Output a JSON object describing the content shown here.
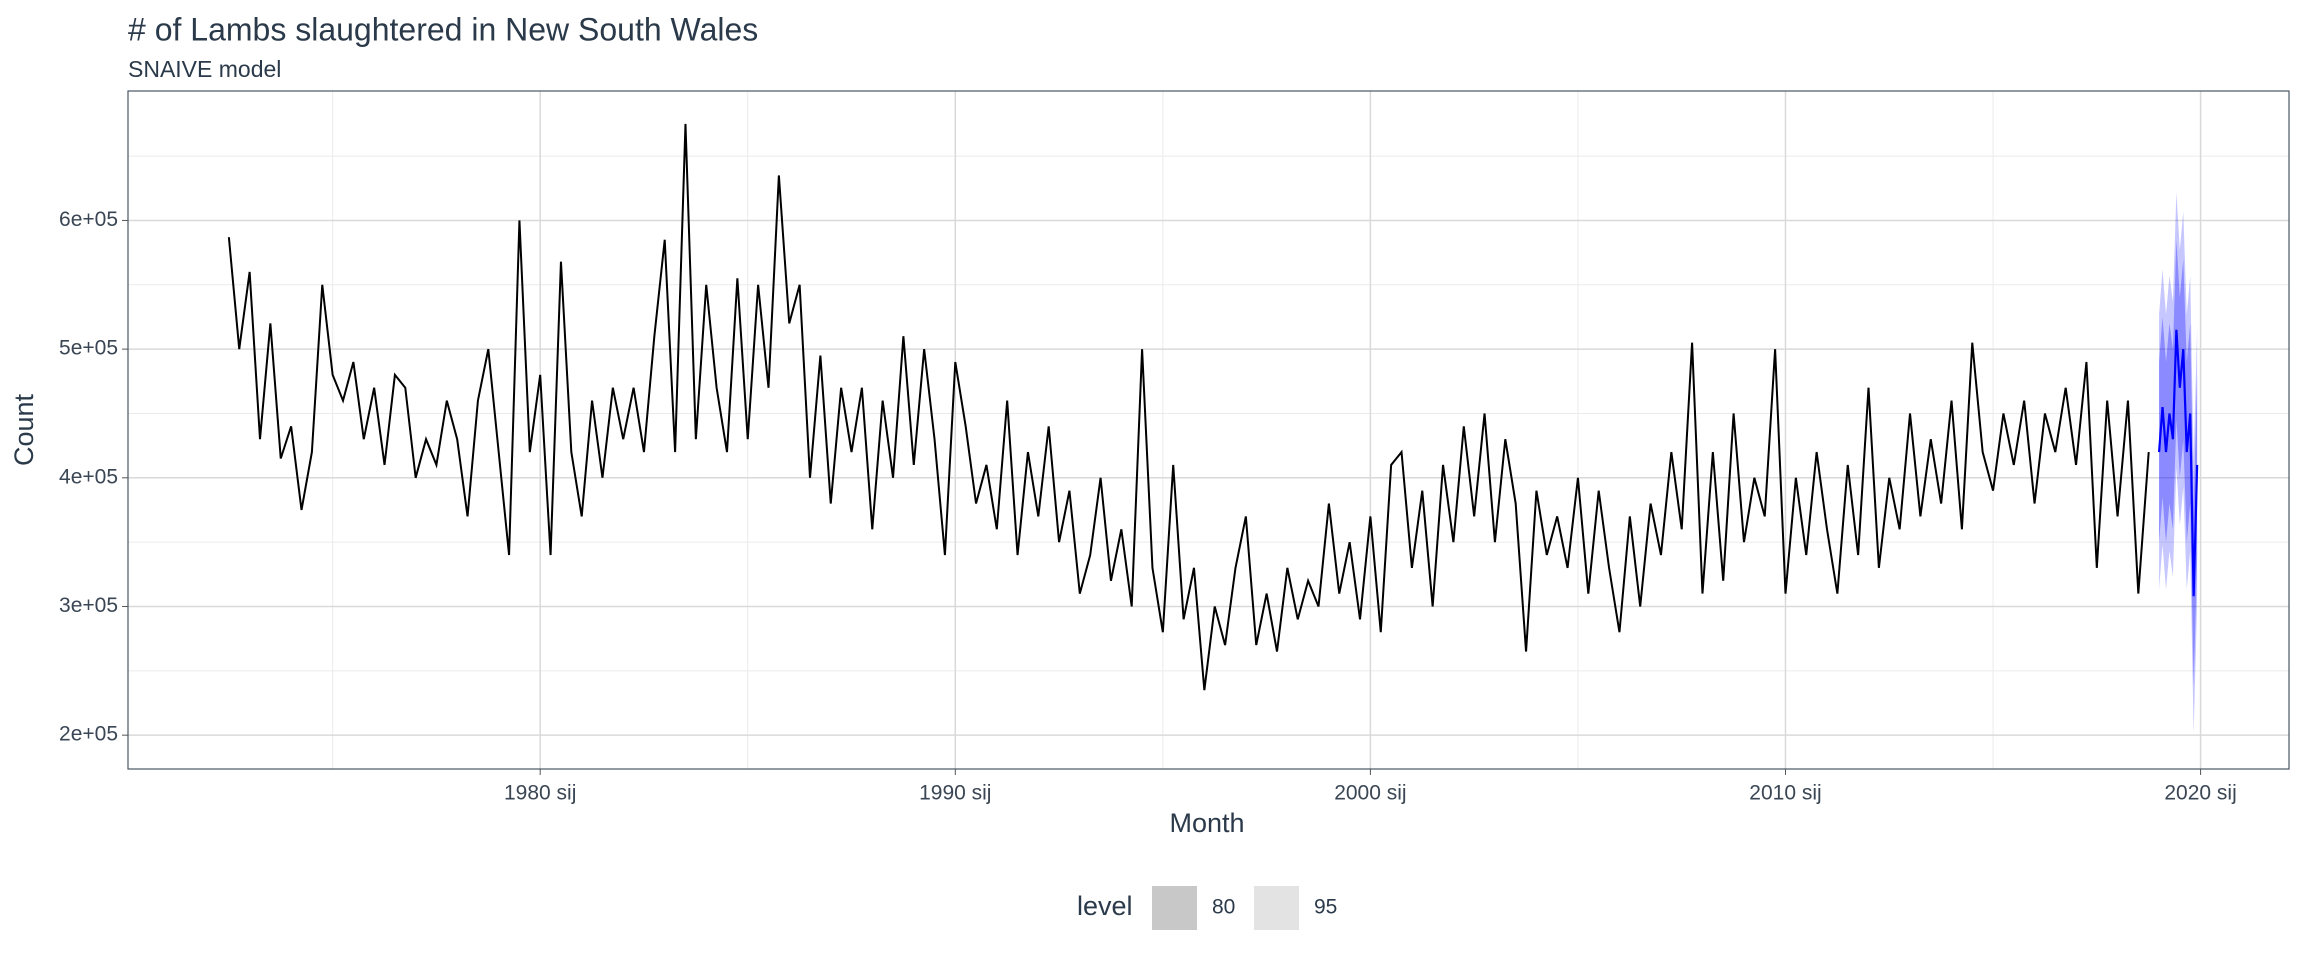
{
  "chart_data": {
    "type": "line",
    "title": "# of Lambs slaughtered in New South Wales",
    "subtitle": "SNAIVE model",
    "x_label": "Month",
    "y_label": "Count",
    "xlim": [
      1970.07,
      2022.13
    ],
    "ylim": [
      173700,
      700600
    ],
    "xticks": [
      {
        "value": 1980,
        "label": "1980 sij"
      },
      {
        "value": 1990,
        "label": "1990 sij"
      },
      {
        "value": 2000,
        "label": "2000 sij"
      },
      {
        "value": 2010,
        "label": "2010 sij"
      },
      {
        "value": 2020,
        "label": "2020 sij"
      }
    ],
    "yticks": [
      {
        "value": 200000,
        "label": "2e+05"
      },
      {
        "value": 300000,
        "label": "3e+05"
      },
      {
        "value": 400000,
        "label": "4e+05"
      },
      {
        "value": 500000,
        "label": "5e+05"
      },
      {
        "value": 600000,
        "label": "6e+05"
      }
    ],
    "grid": true,
    "series": [
      {
        "color": "#000000",
        "x": [
          1972.5,
          1972.75,
          1973,
          1973.25,
          1973.5,
          1973.75,
          1974,
          1974.25,
          1974.5,
          1974.75,
          1975,
          1975.25,
          1975.5,
          1975.75,
          1976,
          1976.25,
          1976.5,
          1976.75,
          1977,
          1977.25,
          1977.5,
          1977.75,
          1978,
          1978.25,
          1978.5,
          1978.75,
          1979,
          1979.25,
          1979.5,
          1979.75,
          1980,
          1980.25,
          1980.5,
          1980.75,
          1981,
          1981.25,
          1981.5,
          1981.75,
          1982,
          1982.25,
          1982.5,
          1982.75,
          1983,
          1983.25,
          1983.5,
          1983.75,
          1984,
          1984.25,
          1984.5,
          1984.75,
          1985,
          1985.25,
          1985.5,
          1985.75,
          1986,
          1986.25,
          1986.5,
          1986.75,
          1987,
          1987.25,
          1987.5,
          1987.75,
          1988,
          1988.25,
          1988.5,
          1988.75,
          1989,
          1989.25,
          1989.5,
          1989.75,
          1990,
          1990.25,
          1990.5,
          1990.75,
          1991,
          1991.25,
          1991.5,
          1991.75,
          1992,
          1992.25,
          1992.5,
          1992.75,
          1993,
          1993.25,
          1993.5,
          1993.75,
          1994,
          1994.25,
          1994.5,
          1994.75,
          1995,
          1995.25,
          1995.5,
          1995.75,
          1996,
          1996.25,
          1996.5,
          1996.75,
          1997,
          1997.25,
          1997.5,
          1997.75,
          1998,
          1998.25,
          1998.5,
          1998.75,
          1999,
          1999.25,
          1999.5,
          1999.75,
          2000,
          2000.25,
          2000.5,
          2000.75,
          2001,
          2001.25,
          2001.5,
          2001.75,
          2002,
          2002.25,
          2002.5,
          2002.75,
          2003,
          2003.25,
          2003.5,
          2003.75,
          2004,
          2004.25,
          2004.5,
          2004.75,
          2005,
          2005.25,
          2005.5,
          2005.75,
          2006,
          2006.25,
          2006.5,
          2006.75,
          2007,
          2007.25,
          2007.5,
          2007.75,
          2008,
          2008.25,
          2008.5,
          2008.75,
          2009,
          2009.25,
          2009.5,
          2009.75,
          2010,
          2010.25,
          2010.5,
          2010.75,
          2011,
          2011.25,
          2011.5,
          2011.75,
          2012,
          2012.25,
          2012.5,
          2012.75,
          2013,
          2013.25,
          2013.5,
          2013.75,
          2014,
          2014.25,
          2014.5,
          2014.75,
          2015,
          2015.25,
          2015.5,
          2015.75,
          2016,
          2016.25,
          2016.5,
          2016.75,
          2017,
          2017.25,
          2017.5,
          2017.75,
          2018,
          2018.25,
          2018.5,
          2018.75
        ],
        "values": [
          587000,
          500000,
          560000,
          430000,
          520000,
          415000,
          440000,
          375000,
          420000,
          550000,
          480000,
          460000,
          490000,
          430000,
          470000,
          410000,
          480000,
          470000,
          400000,
          430000,
          410000,
          460000,
          430000,
          370000,
          460000,
          500000,
          420000,
          340000,
          600000,
          420000,
          480000,
          340000,
          568000,
          420000,
          370000,
          460000,
          400000,
          470000,
          430000,
          470000,
          420000,
          510000,
          585000,
          420000,
          675000,
          430000,
          550000,
          470000,
          420000,
          555000,
          430000,
          550000,
          470000,
          635000,
          520000,
          550000,
          400000,
          495000,
          380000,
          470000,
          420000,
          470000,
          360000,
          460000,
          400000,
          510000,
          410000,
          500000,
          430000,
          340000,
          490000,
          440000,
          380000,
          410000,
          360000,
          460000,
          340000,
          420000,
          370000,
          440000,
          350000,
          390000,
          310000,
          340000,
          400000,
          320000,
          360000,
          300000,
          500000,
          330000,
          280000,
          410000,
          290000,
          330000,
          235000,
          300000,
          270000,
          330000,
          370000,
          270000,
          310000,
          265000,
          330000,
          290000,
          320000,
          300000,
          380000,
          310000,
          350000,
          290000,
          370000,
          280000,
          410000,
          420000,
          330000,
          390000,
          300000,
          410000,
          350000,
          440000,
          370000,
          450000,
          350000,
          430000,
          380000,
          265000,
          390000,
          340000,
          370000,
          330000,
          400000,
          310000,
          390000,
          330000,
          280000,
          370000,
          300000,
          380000,
          340000,
          420000,
          360000,
          505000,
          310000,
          420000,
          320000,
          450000,
          350000,
          400000,
          370000,
          500000,
          310000,
          400000,
          340000,
          420000,
          360000,
          310000,
          410000,
          340000,
          470000,
          330000,
          400000,
          360000,
          450000,
          370000,
          430000,
          380000,
          460000,
          360000,
          505000,
          420000,
          390000,
          450000,
          410000,
          460000,
          380000,
          450000,
          420000,
          470000,
          410000,
          490000,
          330000,
          460000,
          370000,
          460000,
          310000,
          420000
        ]
      }
    ],
    "forecast": {
      "color": "#0000ff",
      "x": [
        2019,
        2019.083,
        2019.167,
        2019.25,
        2019.333,
        2019.417,
        2019.5,
        2019.583,
        2019.667,
        2019.75,
        2019.833,
        2019.917
      ],
      "values": [
        420000,
        455000,
        420000,
        450000,
        430000,
        515000,
        470000,
        500000,
        420000,
        450000,
        308000,
        410000
      ],
      "lo80": [
        350000,
        385000,
        350000,
        380000,
        360000,
        445000,
        400000,
        430000,
        350000,
        380000,
        238000,
        340000
      ],
      "hi80": [
        490000,
        525000,
        490000,
        520000,
        500000,
        585000,
        540000,
        570000,
        490000,
        520000,
        378000,
        480000
      ],
      "lo95": [
        313000,
        348000,
        313000,
        343000,
        323000,
        408000,
        363000,
        393000,
        313000,
        343000,
        201000,
        303000
      ],
      "hi95": [
        527000,
        562000,
        527000,
        557000,
        537000,
        622000,
        577000,
        607000,
        527000,
        557000,
        415000,
        517000
      ]
    },
    "legend_title": "level",
    "levels": [
      80,
      95
    ],
    "level_fills": [
      "#c8c8c8",
      "#e3e3e3"
    ]
  }
}
